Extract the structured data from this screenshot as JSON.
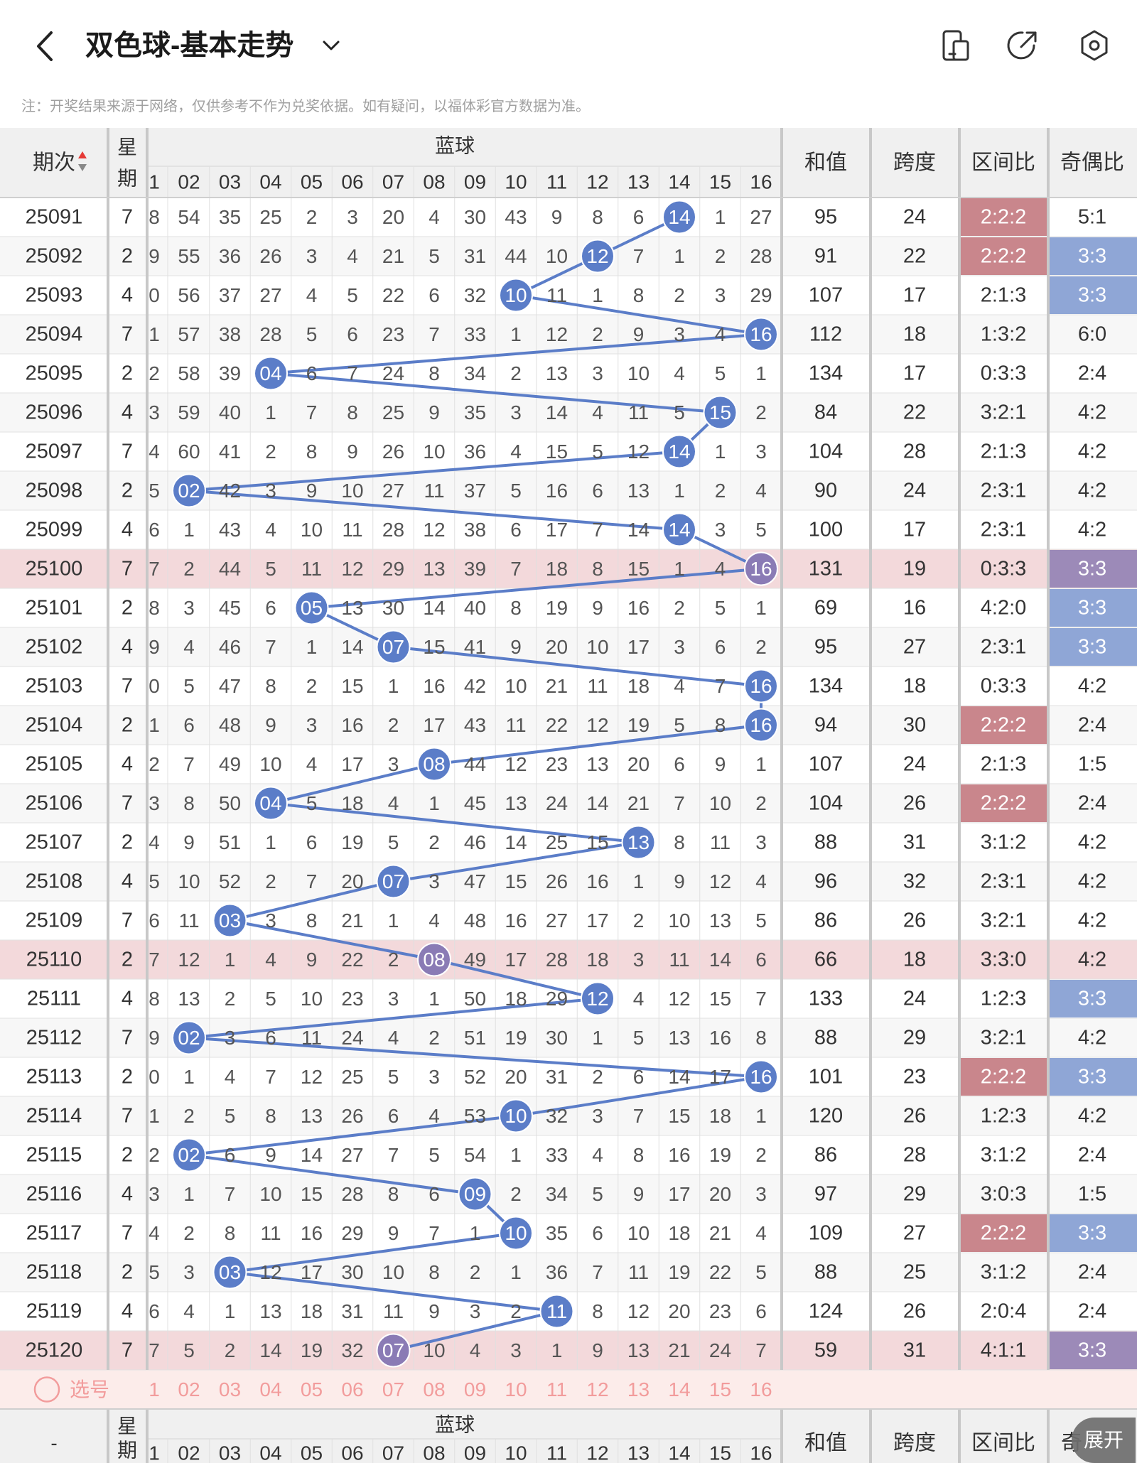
{
  "header": {
    "title": "双色球-基本走势",
    "notice": "注：开奖结果来源于网络，仅供参考不作为兑奖依据。如有疑问，以福体彩官方数据为准。"
  },
  "table": {
    "columns": {
      "period": "期次",
      "weekday": "星期",
      "blue_group": "蓝球",
      "sum": "和值",
      "span": "跨度",
      "zone_ratio": "区间比",
      "odd_even": "奇偶比"
    },
    "blue_numbers": [
      "1",
      "02",
      "03",
      "04",
      "05",
      "06",
      "07",
      "08",
      "09",
      "10",
      "11",
      "12",
      "13",
      "14",
      "15",
      "16"
    ],
    "rows": [
      {
        "period": "25091",
        "weekday": "7",
        "cells": [
          "8",
          "54",
          "35",
          "25",
          "2",
          "3",
          "20",
          "4",
          "30",
          "43",
          "9",
          "8",
          "6",
          "14",
          "1",
          "27"
        ],
        "hit": 14,
        "sum": "95",
        "span": "24",
        "zone": "2:2:2",
        "oe": "5:1",
        "zone_hl": true,
        "oe_hl": "none",
        "row_hl": false
      },
      {
        "period": "25092",
        "weekday": "2",
        "cells": [
          "9",
          "55",
          "36",
          "26",
          "3",
          "4",
          "21",
          "5",
          "31",
          "44",
          "10",
          "12",
          "7",
          "1",
          "2",
          "28"
        ],
        "hit": 12,
        "sum": "91",
        "span": "22",
        "zone": "2:2:2",
        "oe": "3:3",
        "zone_hl": true,
        "oe_hl": "blue",
        "row_hl": false
      },
      {
        "period": "25093",
        "weekday": "4",
        "cells": [
          "0",
          "56",
          "37",
          "27",
          "4",
          "5",
          "22",
          "6",
          "32",
          "10",
          "11",
          "1",
          "8",
          "2",
          "3",
          "29"
        ],
        "hit": 10,
        "sum": "107",
        "span": "17",
        "zone": "2:1:3",
        "oe": "3:3",
        "zone_hl": false,
        "oe_hl": "blue",
        "row_hl": false
      },
      {
        "period": "25094",
        "weekday": "7",
        "cells": [
          "1",
          "57",
          "38",
          "28",
          "5",
          "6",
          "23",
          "7",
          "33",
          "1",
          "12",
          "2",
          "9",
          "3",
          "4",
          "16"
        ],
        "hit": 16,
        "sum": "112",
        "span": "18",
        "zone": "1:3:2",
        "oe": "6:0",
        "zone_hl": false,
        "oe_hl": "none",
        "row_hl": false
      },
      {
        "period": "25095",
        "weekday": "2",
        "cells": [
          "2",
          "58",
          "39",
          "04",
          "6",
          "7",
          "24",
          "8",
          "34",
          "2",
          "13",
          "3",
          "10",
          "4",
          "5",
          "1"
        ],
        "hit": 4,
        "sum": "134",
        "span": "17",
        "zone": "0:3:3",
        "oe": "2:4",
        "zone_hl": false,
        "oe_hl": "none",
        "row_hl": false
      },
      {
        "period": "25096",
        "weekday": "4",
        "cells": [
          "3",
          "59",
          "40",
          "1",
          "7",
          "8",
          "25",
          "9",
          "35",
          "3",
          "14",
          "4",
          "11",
          "5",
          "15",
          "2"
        ],
        "hit": 15,
        "sum": "84",
        "span": "22",
        "zone": "3:2:1",
        "oe": "4:2",
        "zone_hl": false,
        "oe_hl": "none",
        "row_hl": false
      },
      {
        "period": "25097",
        "weekday": "7",
        "cells": [
          "4",
          "60",
          "41",
          "2",
          "8",
          "9",
          "26",
          "10",
          "36",
          "4",
          "15",
          "5",
          "12",
          "14",
          "1",
          "3"
        ],
        "hit": 14,
        "sum": "104",
        "span": "28",
        "zone": "2:1:3",
        "oe": "4:2",
        "zone_hl": false,
        "oe_hl": "none",
        "row_hl": false
      },
      {
        "period": "25098",
        "weekday": "2",
        "cells": [
          "5",
          "02",
          "42",
          "3",
          "9",
          "10",
          "27",
          "11",
          "37",
          "5",
          "16",
          "6",
          "13",
          "1",
          "2",
          "4"
        ],
        "hit": 2,
        "sum": "90",
        "span": "24",
        "zone": "2:3:1",
        "oe": "4:2",
        "zone_hl": false,
        "oe_hl": "none",
        "row_hl": false
      },
      {
        "period": "25099",
        "weekday": "4",
        "cells": [
          "6",
          "1",
          "43",
          "4",
          "10",
          "11",
          "28",
          "12",
          "38",
          "6",
          "17",
          "7",
          "14",
          "14",
          "3",
          "5"
        ],
        "hit": 14,
        "sum": "100",
        "span": "17",
        "zone": "2:3:1",
        "oe": "4:2",
        "zone_hl": false,
        "oe_hl": "none",
        "row_hl": false
      },
      {
        "period": "25100",
        "weekday": "7",
        "cells": [
          "7",
          "2",
          "44",
          "5",
          "11",
          "12",
          "29",
          "13",
          "39",
          "7",
          "18",
          "8",
          "15",
          "1",
          "4",
          "16"
        ],
        "hit": 16,
        "sum": "131",
        "span": "19",
        "zone": "0:3:3",
        "oe": "3:3",
        "zone_hl": false,
        "oe_hl": "purple",
        "row_hl": true
      },
      {
        "period": "25101",
        "weekday": "2",
        "cells": [
          "8",
          "3",
          "45",
          "6",
          "05",
          "13",
          "30",
          "14",
          "40",
          "8",
          "19",
          "9",
          "16",
          "2",
          "5",
          "1"
        ],
        "hit": 5,
        "sum": "69",
        "span": "16",
        "zone": "4:2:0",
        "oe": "3:3",
        "zone_hl": false,
        "oe_hl": "blue",
        "row_hl": false
      },
      {
        "period": "25102",
        "weekday": "4",
        "cells": [
          "9",
          "4",
          "46",
          "7",
          "1",
          "14",
          "07",
          "15",
          "41",
          "9",
          "20",
          "10",
          "17",
          "3",
          "6",
          "2"
        ],
        "hit": 7,
        "sum": "95",
        "span": "27",
        "zone": "2:3:1",
        "oe": "3:3",
        "zone_hl": false,
        "oe_hl": "blue",
        "row_hl": false
      },
      {
        "period": "25103",
        "weekday": "7",
        "cells": [
          "0",
          "5",
          "47",
          "8",
          "2",
          "15",
          "1",
          "16",
          "42",
          "10",
          "21",
          "11",
          "18",
          "4",
          "7",
          "16"
        ],
        "hit": 16,
        "sum": "134",
        "span": "18",
        "zone": "0:3:3",
        "oe": "4:2",
        "zone_hl": false,
        "oe_hl": "none",
        "row_hl": false
      },
      {
        "period": "25104",
        "weekday": "2",
        "cells": [
          "1",
          "6",
          "48",
          "9",
          "3",
          "16",
          "2",
          "17",
          "43",
          "11",
          "22",
          "12",
          "19",
          "5",
          "8",
          "16"
        ],
        "hit": 16,
        "sum": "94",
        "span": "30",
        "zone": "2:2:2",
        "oe": "2:4",
        "zone_hl": true,
        "oe_hl": "none",
        "row_hl": false
      },
      {
        "period": "25105",
        "weekday": "4",
        "cells": [
          "2",
          "7",
          "49",
          "10",
          "4",
          "17",
          "3",
          "08",
          "44",
          "12",
          "23",
          "13",
          "20",
          "6",
          "9",
          "1"
        ],
        "hit": 8,
        "sum": "107",
        "span": "24",
        "zone": "2:1:3",
        "oe": "1:5",
        "zone_hl": false,
        "oe_hl": "none",
        "row_hl": false
      },
      {
        "period": "25106",
        "weekday": "7",
        "cells": [
          "3",
          "8",
          "50",
          "04",
          "5",
          "18",
          "4",
          "1",
          "45",
          "13",
          "24",
          "14",
          "21",
          "7",
          "10",
          "2"
        ],
        "hit": 4,
        "sum": "104",
        "span": "26",
        "zone": "2:2:2",
        "oe": "2:4",
        "zone_hl": true,
        "oe_hl": "none",
        "row_hl": false
      },
      {
        "period": "25107",
        "weekday": "2",
        "cells": [
          "4",
          "9",
          "51",
          "1",
          "6",
          "19",
          "5",
          "2",
          "46",
          "14",
          "25",
          "15",
          "13",
          "8",
          "11",
          "3"
        ],
        "hit": 13,
        "sum": "88",
        "span": "31",
        "zone": "3:1:2",
        "oe": "4:2",
        "zone_hl": false,
        "oe_hl": "none",
        "row_hl": false
      },
      {
        "period": "25108",
        "weekday": "4",
        "cells": [
          "5",
          "10",
          "52",
          "2",
          "7",
          "20",
          "07",
          "3",
          "47",
          "15",
          "26",
          "16",
          "1",
          "9",
          "12",
          "4"
        ],
        "hit": 7,
        "sum": "96",
        "span": "32",
        "zone": "2:3:1",
        "oe": "4:2",
        "zone_hl": false,
        "oe_hl": "none",
        "row_hl": false
      },
      {
        "period": "25109",
        "weekday": "7",
        "cells": [
          "6",
          "11",
          "03",
          "3",
          "8",
          "21",
          "1",
          "4",
          "48",
          "16",
          "27",
          "17",
          "2",
          "10",
          "13",
          "5"
        ],
        "hit": 3,
        "sum": "86",
        "span": "26",
        "zone": "3:2:1",
        "oe": "4:2",
        "zone_hl": false,
        "oe_hl": "none",
        "row_hl": false
      },
      {
        "period": "25110",
        "weekday": "2",
        "cells": [
          "7",
          "12",
          "1",
          "4",
          "9",
          "22",
          "2",
          "08",
          "49",
          "17",
          "28",
          "18",
          "3",
          "11",
          "14",
          "6"
        ],
        "hit": 8,
        "sum": "66",
        "span": "18",
        "zone": "3:3:0",
        "oe": "4:2",
        "zone_hl": false,
        "oe_hl": "none",
        "row_hl": true
      },
      {
        "period": "25111",
        "weekday": "4",
        "cells": [
          "8",
          "13",
          "2",
          "5",
          "10",
          "23",
          "3",
          "1",
          "50",
          "18",
          "29",
          "12",
          "4",
          "12",
          "15",
          "7"
        ],
        "hit": 12,
        "sum": "133",
        "span": "24",
        "zone": "1:2:3",
        "oe": "3:3",
        "zone_hl": false,
        "oe_hl": "blue",
        "row_hl": false
      },
      {
        "period": "25112",
        "weekday": "7",
        "cells": [
          "9",
          "02",
          "3",
          "6",
          "11",
          "24",
          "4",
          "2",
          "51",
          "19",
          "30",
          "1",
          "5",
          "13",
          "16",
          "8"
        ],
        "hit": 2,
        "sum": "88",
        "span": "29",
        "zone": "3:2:1",
        "oe": "4:2",
        "zone_hl": false,
        "oe_hl": "none",
        "row_hl": false
      },
      {
        "period": "25113",
        "weekday": "2",
        "cells": [
          "0",
          "1",
          "4",
          "7",
          "12",
          "25",
          "5",
          "3",
          "52",
          "20",
          "31",
          "2",
          "6",
          "14",
          "17",
          "16"
        ],
        "hit": 16,
        "sum": "101",
        "span": "23",
        "zone": "2:2:2",
        "oe": "3:3",
        "zone_hl": true,
        "oe_hl": "blue",
        "row_hl": false
      },
      {
        "period": "25114",
        "weekday": "7",
        "cells": [
          "1",
          "2",
          "5",
          "8",
          "13",
          "26",
          "6",
          "4",
          "53",
          "10",
          "32",
          "3",
          "7",
          "15",
          "18",
          "1"
        ],
        "hit": 10,
        "sum": "120",
        "span": "26",
        "zone": "1:2:3",
        "oe": "4:2",
        "zone_hl": false,
        "oe_hl": "none",
        "row_hl": false
      },
      {
        "period": "25115",
        "weekday": "2",
        "cells": [
          "2",
          "02",
          "6",
          "9",
          "14",
          "27",
          "7",
          "5",
          "54",
          "1",
          "33",
          "4",
          "8",
          "16",
          "19",
          "2"
        ],
        "hit": 2,
        "sum": "86",
        "span": "28",
        "zone": "3:1:2",
        "oe": "2:4",
        "zone_hl": false,
        "oe_hl": "none",
        "row_hl": false
      },
      {
        "period": "25116",
        "weekday": "4",
        "cells": [
          "3",
          "1",
          "7",
          "10",
          "15",
          "28",
          "8",
          "6",
          "09",
          "2",
          "34",
          "5",
          "9",
          "17",
          "20",
          "3"
        ],
        "hit": 9,
        "sum": "97",
        "span": "29",
        "zone": "3:0:3",
        "oe": "1:5",
        "zone_hl": false,
        "oe_hl": "none",
        "row_hl": false
      },
      {
        "period": "25117",
        "weekday": "7",
        "cells": [
          "4",
          "2",
          "8",
          "11",
          "16",
          "29",
          "9",
          "7",
          "1",
          "10",
          "35",
          "6",
          "10",
          "18",
          "21",
          "4"
        ],
        "hit": 10,
        "sum": "109",
        "span": "27",
        "zone": "2:2:2",
        "oe": "3:3",
        "zone_hl": true,
        "oe_hl": "blue",
        "row_hl": false
      },
      {
        "period": "25118",
        "weekday": "2",
        "cells": [
          "5",
          "3",
          "03",
          "12",
          "17",
          "30",
          "10",
          "8",
          "2",
          "1",
          "36",
          "7",
          "11",
          "19",
          "22",
          "5"
        ],
        "hit": 3,
        "sum": "88",
        "span": "25",
        "zone": "3:1:2",
        "oe": "2:4",
        "zone_hl": false,
        "oe_hl": "none",
        "row_hl": false
      },
      {
        "period": "25119",
        "weekday": "4",
        "cells": [
          "6",
          "4",
          "1",
          "13",
          "18",
          "31",
          "11",
          "9",
          "3",
          "2",
          "11",
          "8",
          "12",
          "20",
          "23",
          "6"
        ],
        "hit": 11,
        "sum": "124",
        "span": "26",
        "zone": "2:0:4",
        "oe": "2:4",
        "zone_hl": false,
        "oe_hl": "none",
        "row_hl": false
      },
      {
        "period": "25120",
        "weekday": "7",
        "cells": [
          "7",
          "5",
          "2",
          "14",
          "19",
          "32",
          "07",
          "10",
          "4",
          "3",
          "1",
          "9",
          "13",
          "21",
          "24",
          "7"
        ],
        "hit": 7,
        "sum": "59",
        "span": "31",
        "zone": "4:1:1",
        "oe": "3:3",
        "zone_hl": false,
        "oe_hl": "purple",
        "row_hl": true
      }
    ],
    "select_row": {
      "label": "选号",
      "numbers": [
        "1",
        "02",
        "03",
        "04",
        "05",
        "06",
        "07",
        "08",
        "09",
        "10",
        "11",
        "12",
        "13",
        "14",
        "15",
        "16"
      ]
    },
    "bottom_header": {
      "period": "-",
      "weekday": "星期",
      "blue_group": "蓝球",
      "sum": "和值",
      "span": "跨度",
      "zone_ratio": "区间比",
      "odd_even_partial": "奇",
      "numbers": [
        "1",
        "02",
        "03",
        "04",
        "05",
        "06",
        "07",
        "08",
        "09",
        "10",
        "11",
        "12",
        "13",
        "14",
        "15",
        "16"
      ]
    }
  },
  "floating": {
    "expand_label": "展开"
  },
  "colors": {
    "ball": "#5B7DC8",
    "ball_purple": "#8A7BB5",
    "line": "#5B7DC8",
    "row_highlight": "#F3D9DB",
    "zone_highlight": "#C9868C",
    "oe_blue": "#8FA6D6",
    "oe_purple": "#9C8AB8",
    "select_row_bg": "#FCECEA",
    "select_text": "#F29C9C",
    "header_bg": "#F0F0F0"
  }
}
